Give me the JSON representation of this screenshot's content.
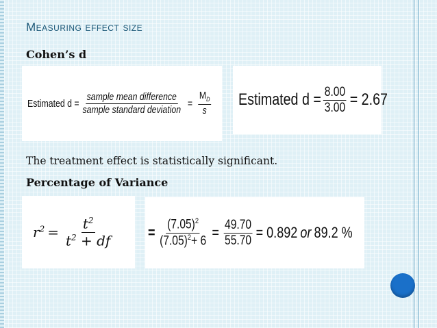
{
  "title": "Measuring effect size",
  "section1": {
    "heading": "Cohen’s d",
    "formula_left": {
      "lhs": "Estimated d =",
      "numerator": "sample mean difference",
      "denominator": "sample standard deviation",
      "eq": "=",
      "num2": "M",
      "num2_sub": "D",
      "den2": "s"
    },
    "formula_right": {
      "lhs": "Estimated d =",
      "numerator": "8.00",
      "denominator": "3.00",
      "result": "= 2.67"
    }
  },
  "statement": "The treatment effect is statistically significant.",
  "section2": {
    "heading": "Percentage of Variance",
    "formula_left": {
      "lhs": "r",
      "lhs_sup": "2",
      "eq": "=",
      "num": "t",
      "num_sup": "2",
      "den": "t",
      "den_sup": "2",
      "den_rest": " + df"
    },
    "formula_right": {
      "lead": "=",
      "num": "(7.05)",
      "num_sup": "2",
      "den": "(7.05)",
      "den_sup": "2",
      "den_rest": "+ 6",
      "eq": "=",
      "num2": "49.70",
      "den2": "55.70",
      "result_a": "= 0.892",
      "result_or": "or",
      "result_b": "89.2 %"
    }
  },
  "colors": {
    "title": "#1b5777",
    "accent_dot": "#1a70c9",
    "background": "#dff0f6"
  }
}
